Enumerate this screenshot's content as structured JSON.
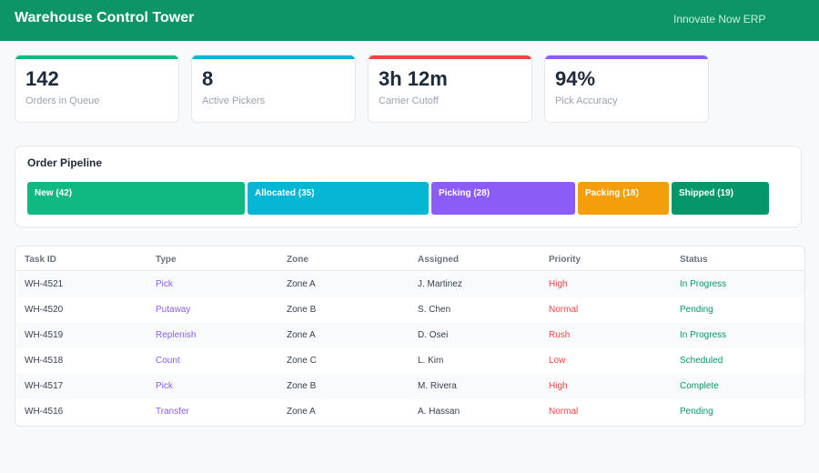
{
  "header": {
    "title": "Warehouse Control Tower",
    "brand": "Innovate Now ERP"
  },
  "kpis": [
    {
      "value": "142",
      "label": "Orders in Queue",
      "color": "#10b981"
    },
    {
      "value": "8",
      "label": "Active Pickers",
      "color": "#06b6d4"
    },
    {
      "value": "3h 12m",
      "label": "Carrier Cutoff",
      "color": "#ef4444"
    },
    {
      "value": "94%",
      "label": "Pick Accuracy",
      "color": "#8b5cf6"
    }
  ],
  "pipeline": {
    "title": "Order Pipeline",
    "stages": [
      {
        "label": "New (42)",
        "count": 42,
        "color": "#10b981"
      },
      {
        "label": "Allocated (35)",
        "count": 35,
        "color": "#06b6d4"
      },
      {
        "label": "Picking (28)",
        "count": 28,
        "color": "#8b5cf6"
      },
      {
        "label": "Packing (18)",
        "count": 18,
        "color": "#f59e0b"
      },
      {
        "label": "Shipped (19)",
        "count": 19,
        "color": "#059669"
      }
    ]
  },
  "table": {
    "columns": [
      "Task ID",
      "Type",
      "Zone",
      "Assigned",
      "Priority",
      "Status"
    ],
    "rows": [
      [
        "WH-4521",
        "Pick",
        "Zone A",
        "J. Martinez",
        "High",
        "In Progress"
      ],
      [
        "WH-4520",
        "Putaway",
        "Zone B",
        "S. Chen",
        "Normal",
        "Pending"
      ],
      [
        "WH-4519",
        "Replenish",
        "Zone A",
        "D. Osei",
        "Rush",
        "In Progress"
      ],
      [
        "WH-4518",
        "Count",
        "Zone C",
        "L. Kim",
        "Low",
        "Scheduled"
      ],
      [
        "WH-4517",
        "Pick",
        "Zone B",
        "M. Rivera",
        "High",
        "Complete"
      ],
      [
        "WH-4516",
        "Transfer",
        "Zone A",
        "A. Hassan",
        "Normal",
        "Pending"
      ]
    ]
  },
  "colors": {
    "type_text": "#8b5cf6",
    "priority_text": "#ef4444",
    "status_text": "#059669"
  }
}
